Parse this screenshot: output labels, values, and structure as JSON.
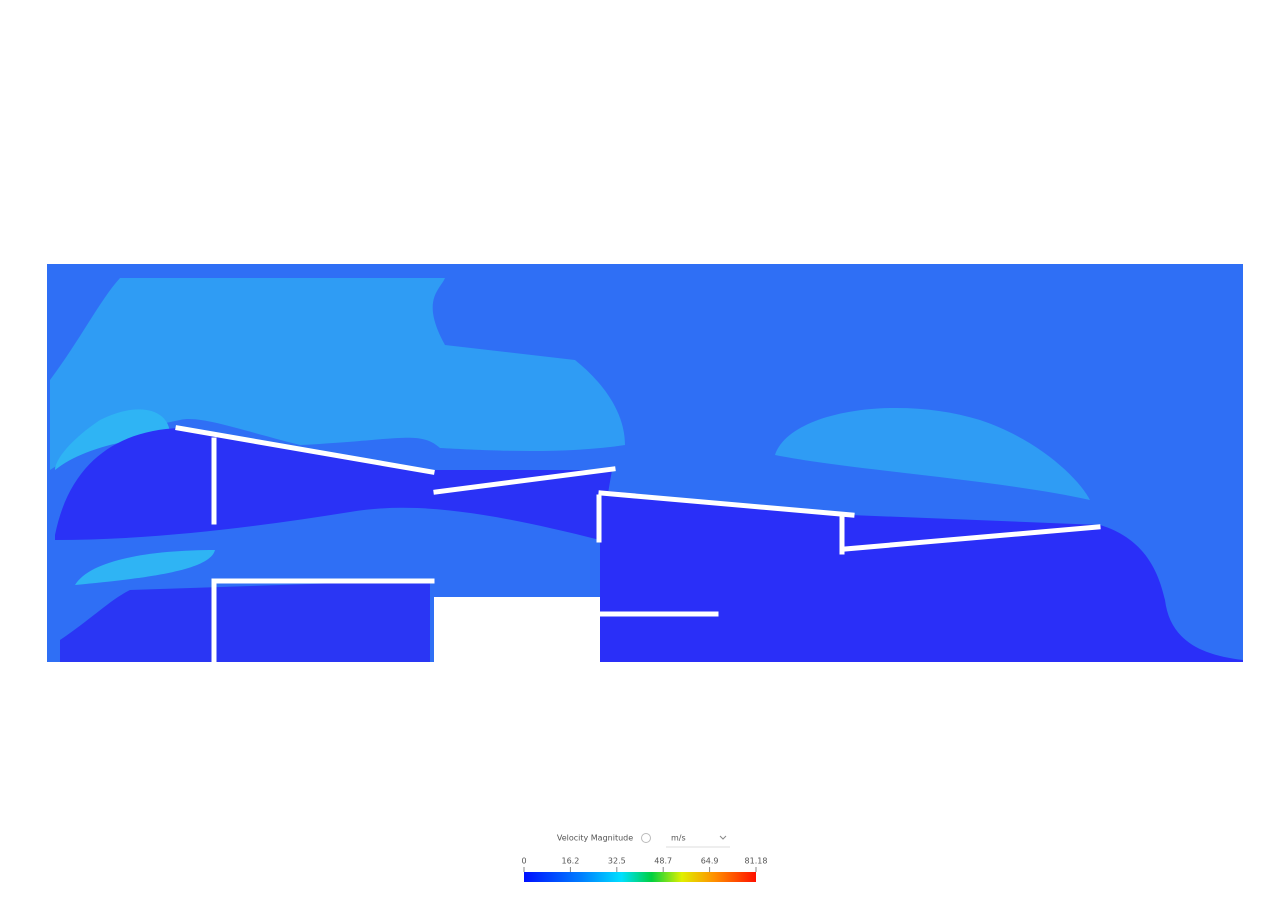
{
  "legend": {
    "title": "Velocity Magnitude",
    "unit": "m/s",
    "ticks": [
      "0",
      "16.2",
      "32.5",
      "48.7",
      "64.9",
      "81.18"
    ]
  }
}
